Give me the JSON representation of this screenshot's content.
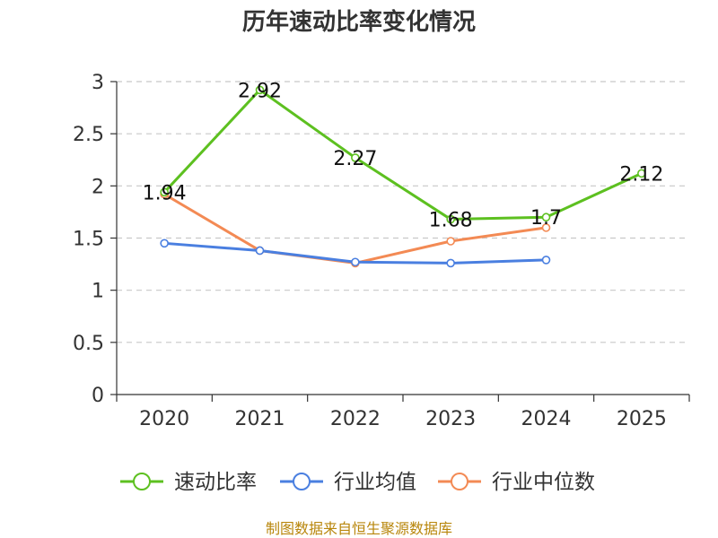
{
  "chart_data": {
    "type": "line",
    "title": "历年速动比率变化情况",
    "categories": [
      "2020",
      "2021",
      "2022",
      "2023",
      "2024",
      "2025"
    ],
    "ylim": [
      0,
      3
    ],
    "yticks": [
      0,
      0.5,
      1,
      1.5,
      2,
      2.5,
      3
    ],
    "ytick_labels": [
      "0",
      "0.5",
      "1",
      "1.5",
      "2",
      "2.5",
      "3"
    ],
    "grid": "horizontal-dashed",
    "legend_position": "bottom",
    "series": [
      {
        "name": "速动比率",
        "color": "#5dc020",
        "values": [
          1.94,
          2.92,
          2.27,
          1.68,
          1.7,
          2.12
        ],
        "labels": [
          "1.94",
          "2.92",
          "2.27",
          "1.68",
          "1.7",
          "2.12"
        ],
        "show_labels": true
      },
      {
        "name": "行业均值",
        "color": "#4a7fe0",
        "values": [
          1.45,
          1.38,
          1.27,
          1.26,
          1.29,
          null
        ],
        "show_labels": false
      },
      {
        "name": "行业中位数",
        "color": "#f38a54",
        "values": [
          1.92,
          1.38,
          1.26,
          1.47,
          1.6,
          null
        ],
        "show_labels": false
      }
    ]
  },
  "source_text": "制图数据来自恒生聚源数据库"
}
